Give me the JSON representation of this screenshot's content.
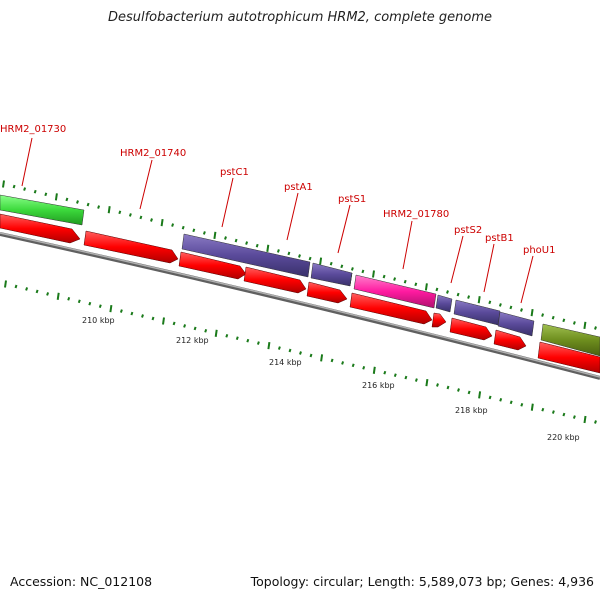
{
  "title": "Desulfobacterium autotrophicum HRM2, complete genome",
  "accession": "Accession: NC_012108",
  "summary": "Topology: circular; Length: 5,589,073 bp; Genes: 4,936",
  "colors": {
    "cds_red": "#ff0000",
    "gene_purple": "#5a4a9a",
    "gene_green": "#3cd93c",
    "gene_magenta": "#ff1aa0",
    "gene_olive": "#6e8e1e",
    "label_red": "#cc0000",
    "tick_green": "#1a7a1a",
    "backbone_gray": "#808080"
  },
  "chart_data": {
    "type": "genome-map",
    "kbp_labels": [
      "210 kbp",
      "212 kbp",
      "214 kbp",
      "216 kbp",
      "218 kbp",
      "220 kbp"
    ],
    "gene_labels": [
      "HRM2_01730",
      "HRM2_01740",
      "pstC1",
      "pstA1",
      "pstS1",
      "HRM2_01780",
      "pstS2",
      "pstB1",
      "phoU1"
    ]
  }
}
